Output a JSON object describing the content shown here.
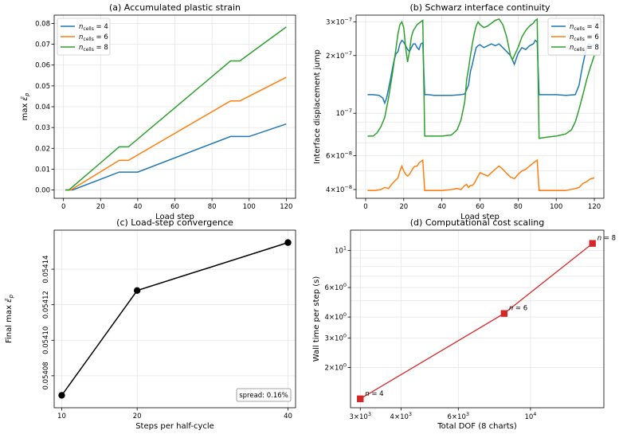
{
  "colors": {
    "n4": "#1f77b4",
    "n6": "#ff7f0e",
    "n8": "#2ca02c",
    "conv": "#000000",
    "cost": "#d62728"
  },
  "chart_data": [
    {
      "id": "a",
      "type": "line",
      "title": "(a) Accumulated plastic strain",
      "xlabel": "Load step",
      "ylabel": "max ε̄p",
      "xlim": [
        -5,
        125
      ],
      "ylim": [
        -0.004,
        0.084
      ],
      "xticks": [
        0,
        20,
        40,
        60,
        80,
        100,
        120
      ],
      "yticks": [
        0.0,
        0.01,
        0.02,
        0.03,
        0.04,
        0.05,
        0.06,
        0.07,
        0.08
      ],
      "ytick_labels": [
        "0.00",
        "0.01",
        "0.02",
        "0.03",
        "0.04",
        "0.05",
        "0.06",
        "0.07",
        "0.08"
      ],
      "grid": true,
      "legend": "top-left",
      "series": [
        {
          "name": "n_cells = 4",
          "sub": "cells",
          "val": "4",
          "color": "#1f77b4",
          "x": [
            1,
            5,
            30,
            40,
            90,
            100,
            120
          ],
          "y": [
            0,
            0,
            0.0086,
            0.0086,
            0.0257,
            0.0257,
            0.0317
          ]
        },
        {
          "name": "n_cells = 6",
          "sub": "cells",
          "val": "6",
          "color": "#ff7f0e",
          "x": [
            1,
            4,
            30,
            35,
            90,
            95,
            120
          ],
          "y": [
            0,
            0,
            0.0142,
            0.0142,
            0.0428,
            0.0428,
            0.0541
          ]
        },
        {
          "name": "n_cells = 8",
          "sub": "cells",
          "val": "8",
          "color": "#2ca02c",
          "x": [
            1,
            3,
            30,
            35,
            90,
            95,
            120
          ],
          "y": [
            0,
            0,
            0.0207,
            0.0207,
            0.062,
            0.062,
            0.0783
          ]
        }
      ]
    },
    {
      "id": "b",
      "type": "line",
      "title": "(b) Schwarz interface continuity",
      "xlabel": "Load step",
      "ylabel": "Interface displacement jump",
      "xscale": "linear",
      "yscale": "log",
      "xlim": [
        -5,
        125
      ],
      "ylim": [
        3.6e-08,
        3.25e-07
      ],
      "xticks": [
        0,
        20,
        40,
        60,
        80,
        100,
        120
      ],
      "yticks_log": [
        {
          "v": 3e-07,
          "m": "3",
          "e": "−7"
        },
        {
          "v": 2e-07,
          "m": "2",
          "e": "−7"
        },
        {
          "v": 1e-07,
          "m": "",
          "e": "−7"
        },
        {
          "v": 6e-08,
          "m": "6",
          "e": "−8"
        },
        {
          "v": 4e-08,
          "m": "4",
          "e": "−8"
        }
      ],
      "grid": true,
      "legend": "top-right",
      "series": [
        {
          "name": "n_cells = 4",
          "sub": "cells",
          "val": "4",
          "color": "#1f77b4",
          "x": [
            1,
            4,
            7,
            9,
            10,
            11,
            13,
            14,
            15,
            16,
            17,
            18,
            19,
            20,
            21,
            22,
            23,
            24,
            25,
            26,
            27,
            28,
            29,
            30,
            31,
            33,
            36,
            40,
            45,
            50,
            52,
            54,
            55,
            56,
            57,
            58,
            59,
            60,
            62,
            64,
            66,
            68,
            70,
            72,
            74,
            76,
            78,
            80,
            82,
            84,
            86,
            88,
            89,
            90,
            91,
            95,
            100,
            105,
            110,
            112,
            113,
            114,
            115,
            116,
            117,
            118,
            119,
            120
          ],
          "y": [
            1.25e-07,
            1.25e-07,
            1.24e-07,
            1.2e-07,
            1.13e-07,
            1.2e-07,
            1.5e-07,
            1.7e-07,
            1.9e-07,
            2.05e-07,
            2.1e-07,
            2.3e-07,
            2.4e-07,
            2.35e-07,
            2.25e-07,
            2.15e-07,
            2.1e-07,
            2.2e-07,
            2.3e-07,
            2.3e-07,
            2.2e-07,
            2.15e-07,
            2.3e-07,
            2.33e-07,
            1.25e-07,
            1.25e-07,
            1.24e-07,
            1.24e-07,
            1.24e-07,
            1.25e-07,
            1.26e-07,
            1.4e-07,
            1.65e-07,
            1.8e-07,
            2e-07,
            2.2e-07,
            2.25e-07,
            2.28e-07,
            2.2e-07,
            2.25e-07,
            2.3e-07,
            2.25e-07,
            2.3e-07,
            2.2e-07,
            2.1e-07,
            2e-07,
            1.8e-07,
            2.05e-07,
            2.2e-07,
            2.15e-07,
            2.25e-07,
            2.3e-07,
            2.4e-07,
            2.35e-07,
            1.25e-07,
            1.25e-07,
            1.25e-07,
            1.24e-07,
            1.25e-07,
            1.4e-07,
            1.6e-07,
            1.8e-07,
            2e-07,
            2.2e-07,
            2.3e-07,
            2.28e-07,
            2.25e-07,
            2.28e-07
          ]
        },
        {
          "name": "n_cells = 6",
          "sub": "cells",
          "val": "6",
          "color": "#ff7f0e",
          "x": [
            1,
            5,
            8,
            10,
            12,
            14,
            16,
            17,
            18,
            19,
            20,
            21,
            22,
            23,
            24,
            25,
            26,
            27,
            28,
            29,
            30,
            31,
            33,
            40,
            45,
            48,
            50,
            52,
            53,
            54,
            55,
            56,
            57,
            58,
            59,
            60,
            62,
            64,
            66,
            68,
            70,
            72,
            74,
            76,
            78,
            80,
            82,
            84,
            86,
            88,
            89,
            90,
            91,
            95,
            100,
            105,
            110,
            112,
            114,
            116,
            118,
            120
          ],
          "y": [
            3.95e-08,
            3.95e-08,
            4e-08,
            4.1e-08,
            4.05e-08,
            4.3e-08,
            4.5e-08,
            4.6e-08,
            5e-08,
            5.3e-08,
            5e-08,
            4.8e-08,
            4.7e-08,
            4.8e-08,
            5e-08,
            5.2e-08,
            5.3e-08,
            5.3e-08,
            5.5e-08,
            5.6e-08,
            5.7e-08,
            3.95e-08,
            3.95e-08,
            3.95e-08,
            4e-08,
            4.05e-08,
            4e-08,
            4.2e-08,
            4.25e-08,
            4.1e-08,
            4.2e-08,
            4.2e-08,
            4.3e-08,
            4.5e-08,
            4.7e-08,
            4.9e-08,
            4.8e-08,
            4.7e-08,
            4.9e-08,
            5.1e-08,
            5.3e-08,
            5.1e-08,
            4.85e-08,
            4.65e-08,
            4.55e-08,
            4.8e-08,
            5e-08,
            5.1e-08,
            5.3e-08,
            5.5e-08,
            5.6e-08,
            5.7e-08,
            3.95e-08,
            3.95e-08,
            3.95e-08,
            3.95e-08,
            4.05e-08,
            4.1e-08,
            4.3e-08,
            4.4e-08,
            4.55e-08,
            4.6e-08
          ]
        },
        {
          "name": "n_cells = 8",
          "sub": "cells",
          "val": "8",
          "color": "#2ca02c",
          "x": [
            1,
            4,
            6,
            8,
            10,
            12,
            14,
            16,
            17,
            18,
            19,
            20,
            21,
            22,
            23,
            24,
            25,
            26,
            27,
            28,
            29,
            30,
            31,
            35,
            40,
            45,
            48,
            50,
            52,
            53,
            54,
            55,
            56,
            57,
            58,
            59,
            60,
            62,
            64,
            66,
            68,
            70,
            72,
            74,
            76,
            77,
            78,
            80,
            82,
            84,
            86,
            88,
            89,
            90,
            91,
            95,
            100,
            105,
            108,
            110,
            112,
            114,
            116,
            118,
            120
          ],
          "y": [
            7.6e-08,
            7.6e-08,
            7.9e-08,
            8.5e-08,
            9.5e-08,
            1.2e-07,
            1.6e-07,
            2.2e-07,
            2.6e-07,
            2.9e-07,
            3e-07,
            2.8e-07,
            2.2e-07,
            1.85e-07,
            2.1e-07,
            2.5e-07,
            2.7e-07,
            2.8e-07,
            2.9e-07,
            2.95e-07,
            3e-07,
            3.05e-07,
            7.6e-08,
            7.6e-08,
            7.6e-08,
            7.7e-08,
            8.2e-08,
            9.2e-08,
            1.15e-07,
            1.5e-07,
            1.7e-07,
            2e-07,
            2.3e-07,
            2.6e-07,
            2.85e-07,
            3e-07,
            2.9e-07,
            2.8e-07,
            2.85e-07,
            2.95e-07,
            3.05e-07,
            3.1e-07,
            2.9e-07,
            2.5e-07,
            2e-07,
            1.9e-07,
            2e-07,
            2.2e-07,
            2.5e-07,
            2.7e-07,
            2.85e-07,
            2.95e-07,
            3.05e-07,
            3.1e-07,
            7.4e-08,
            7.5e-08,
            7.6e-08,
            7.8e-08,
            8.2e-08,
            9e-08,
            1.05e-07,
            1.25e-07,
            1.5e-07,
            1.75e-07,
            2e-07
          ]
        }
      ]
    },
    {
      "id": "c",
      "type": "line",
      "title": "(c) Load-step convergence",
      "xlabel": "Steps per half-cycle",
      "ylabel": "Final max ε̄p",
      "xlim": [
        9,
        41
      ],
      "ylim": [
        0.054062,
        0.054162
      ],
      "xticks": [
        10,
        20,
        40
      ],
      "yticks": [
        0.05408,
        0.0541,
        0.05412,
        0.05414
      ],
      "ytick_labels": [
        "0.05408",
        "0.05410",
        "0.05412",
        "0.05414"
      ],
      "grid": true,
      "x": [
        10,
        20,
        40
      ],
      "y": [
        0.054069,
        0.054128,
        0.054155
      ],
      "annotation": "spread: 0.16%"
    },
    {
      "id": "d",
      "type": "line",
      "title": "(d) Computational cost scaling",
      "xlabel": "Total DOF (8 charts)",
      "ylabel": "Wall time per step (s)",
      "xscale": "log",
      "yscale": "log",
      "xlim": [
        2800,
        16800
      ],
      "ylim": [
        1.15,
        13.2
      ],
      "xticks_log": [
        {
          "v": 3000,
          "m": "3",
          "e": "3"
        },
        {
          "v": 4000,
          "m": "4",
          "e": "3"
        },
        {
          "v": 6000,
          "m": "6",
          "e": "3"
        },
        {
          "v": 10000,
          "m": "",
          "e": "4"
        }
      ],
      "yticks_log": [
        {
          "v": 10,
          "m": "",
          "e": "1"
        },
        {
          "v": 6,
          "m": "6",
          "e": "0"
        },
        {
          "v": 4,
          "m": "4",
          "e": "0"
        },
        {
          "v": 3,
          "m": "3",
          "e": "0"
        },
        {
          "v": 2,
          "m": "2",
          "e": "0"
        }
      ],
      "grid": true,
      "x": [
        3000,
        8300,
        15500
      ],
      "y": [
        1.3,
        4.2,
        11.0
      ],
      "point_labels": [
        "n = 4",
        "n = 6",
        "n = 8"
      ]
    }
  ]
}
